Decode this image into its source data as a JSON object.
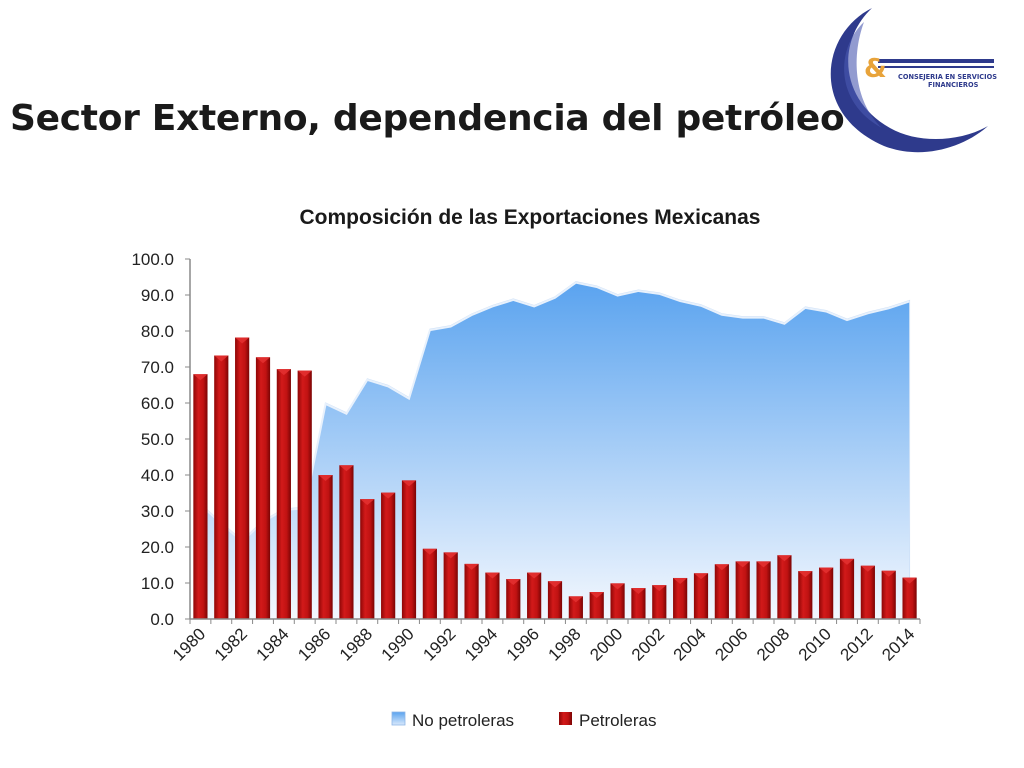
{
  "slide": {
    "title": "Sector Externo, dependencia del petróleo"
  },
  "logo": {
    "symbol": "&",
    "line1": "CONSEJERIA EN SERVICIOS",
    "line2": "FINANCIEROS",
    "colors": {
      "arc": "#2e3a8c",
      "ampersand": "#e8a33a"
    }
  },
  "colors": {
    "area_top": "#5aa3ef",
    "area_bottom": "#f4f8fe",
    "bar_top": "#d21a1a",
    "bar_bottom": "#8e0606",
    "axis": "#8a8a8a"
  },
  "chart_data": {
    "type": "bar",
    "title": "Composición de las Exportaciones Mexicanas",
    "xlabel": "",
    "ylabel": "",
    "ylim": [
      0,
      100
    ],
    "yticks": [
      "0.0",
      "10.0",
      "20.0",
      "30.0",
      "40.0",
      "50.0",
      "60.0",
      "70.0",
      "80.0",
      "90.0",
      "100.0"
    ],
    "categories": [
      1980,
      1981,
      1982,
      1983,
      1984,
      1985,
      1986,
      1987,
      1988,
      1989,
      1990,
      1991,
      1992,
      1993,
      1994,
      1995,
      1996,
      1997,
      1998,
      1999,
      2000,
      2001,
      2002,
      2003,
      2004,
      2005,
      2006,
      2007,
      2008,
      2009,
      2010,
      2011,
      2012,
      2013,
      2014
    ],
    "xtick_labels": [
      "1980",
      "1982",
      "1984",
      "1986",
      "1988",
      "1990",
      "1992",
      "1994",
      "1996",
      "1998",
      "2000",
      "2002",
      "2004",
      "2006",
      "2008",
      "2010",
      "2012",
      "2014"
    ],
    "series": [
      {
        "name": "No petroleras",
        "kind": "area",
        "values": [
          32.0,
          26.8,
          21.8,
          27.3,
          30.6,
          31.0,
          60.0,
          57.3,
          66.7,
          64.9,
          61.5,
          80.5,
          81.5,
          84.7,
          87.1,
          88.9,
          87.1,
          89.5,
          93.7,
          92.5,
          90.1,
          91.4,
          90.6,
          88.6,
          87.3,
          84.8,
          84.0,
          84.0,
          82.3,
          86.7,
          85.7,
          83.3,
          85.2,
          86.6,
          88.5
        ]
      },
      {
        "name": "Petroleras",
        "kind": "bar",
        "values": [
          68.0,
          73.2,
          78.2,
          72.7,
          69.4,
          69.0,
          40.0,
          42.7,
          33.3,
          35.1,
          38.5,
          19.5,
          18.5,
          15.3,
          12.9,
          11.1,
          12.9,
          10.5,
          6.3,
          7.5,
          9.9,
          8.6,
          9.4,
          11.4,
          12.7,
          15.2,
          16.0,
          16.0,
          17.7,
          13.3,
          14.3,
          16.7,
          14.8,
          13.4,
          11.5
        ]
      }
    ],
    "legend": {
      "position": "bottom",
      "entries": [
        "No petroleras",
        "Petroleras"
      ]
    },
    "grid": false
  }
}
